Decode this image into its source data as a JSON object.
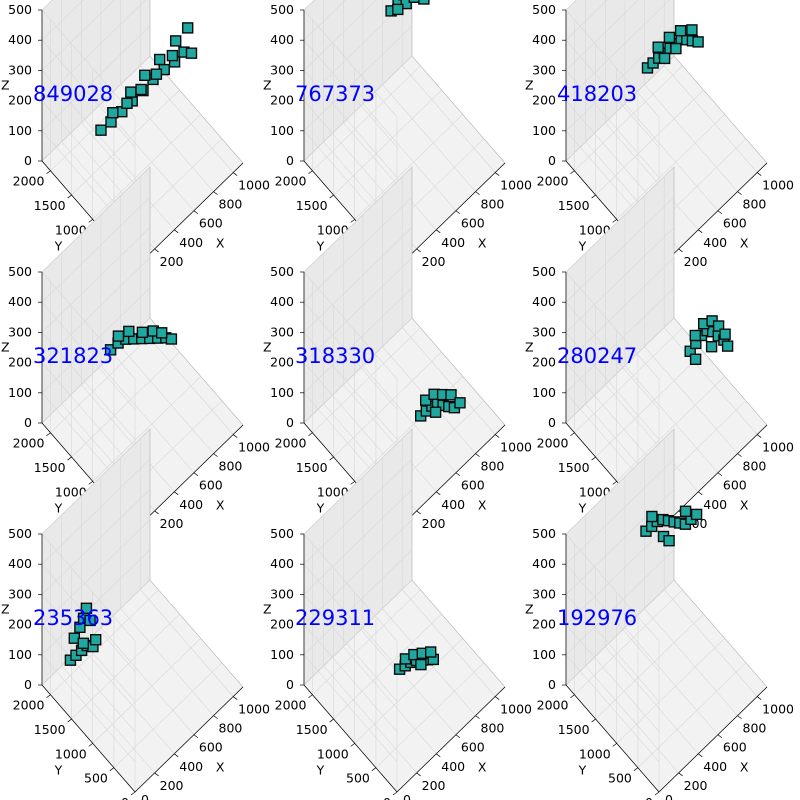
{
  "figure": {
    "colors": {
      "pane_side": "#e9e9e9",
      "pane_floor": "#f2f2f2",
      "grid": "#d8d8d8",
      "edge": "#b0b0b0",
      "label": "#0000ff",
      "voxel_fill": "#1fa8a0",
      "voxel_edge": "#0a0a0a"
    }
  },
  "chart_data": [
    {
      "type": "scatter",
      "label": "849028",
      "xlabel": "X",
      "ylabel": "Y",
      "zlabel": "Z",
      "xlim": [
        0,
        1100
      ],
      "ylim": [
        0,
        2200
      ],
      "zlim": [
        0,
        500
      ],
      "xticks": [
        "200",
        "400",
        "600",
        "800",
        "1000"
      ],
      "yticks": [
        "0",
        "500",
        "1000",
        "1500",
        "2000"
      ],
      "zticks": [
        "0",
        "100",
        "200",
        "300",
        "400",
        "500"
      ],
      "x_origin_label": "0",
      "points": [
        [
          300,
          1500,
          120
        ],
        [
          380,
          1450,
          130
        ],
        [
          460,
          1380,
          150
        ],
        [
          540,
          1320,
          170
        ],
        [
          620,
          1250,
          190
        ],
        [
          700,
          1200,
          210
        ],
        [
          780,
          1120,
          230
        ],
        [
          860,
          1060,
          240
        ],
        [
          930,
          1000,
          260
        ],
        [
          980,
          940,
          250
        ],
        [
          420,
          1500,
          140
        ],
        [
          560,
          1400,
          180
        ],
        [
          660,
          1300,
          220
        ],
        [
          760,
          1180,
          260
        ],
        [
          880,
          1080,
          300
        ],
        [
          950,
          960,
          340
        ],
        [
          820,
          1020,
          280
        ],
        [
          700,
          1120,
          240
        ],
        [
          600,
          1250,
          200
        ],
        [
          500,
          1350,
          170
        ]
      ]
    },
    {
      "type": "scatter",
      "label": "767373",
      "xlabel": "X",
      "ylabel": "Y",
      "zlabel": "Z",
      "xlim": [
        0,
        1100
      ],
      "ylim": [
        0,
        2200
      ],
      "zlim": [
        0,
        500
      ],
      "xticks": [
        "200",
        "400",
        "600",
        "800",
        "1000"
      ],
      "yticks": [
        "0",
        "500",
        "1000",
        "1500",
        "2000"
      ],
      "zticks": [
        "0",
        "100",
        "200",
        "300",
        "400",
        "500"
      ],
      "x_origin_label": "0",
      "points": [
        [
          650,
          1650,
          380
        ],
        [
          700,
          1600,
          400
        ],
        [
          740,
          1560,
          420
        ],
        [
          780,
          1520,
          430
        ],
        [
          820,
          1480,
          440
        ],
        [
          860,
          1440,
          430
        ],
        [
          900,
          1400,
          420
        ],
        [
          760,
          1620,
          460
        ],
        [
          700,
          1680,
          450
        ],
        [
          820,
          1560,
          470
        ],
        [
          880,
          1500,
          460
        ],
        [
          920,
          1460,
          440
        ],
        [
          960,
          1420,
          420
        ],
        [
          740,
          1500,
          400
        ],
        [
          800,
          1450,
          410
        ],
        [
          680,
          1560,
          390
        ],
        [
          860,
          1360,
          400
        ],
        [
          940,
          1380,
          410
        ]
      ]
    },
    {
      "type": "scatter",
      "label": "418203",
      "xlabel": "X",
      "ylabel": "Y",
      "zlabel": "Z",
      "xlim": [
        0,
        1100
      ],
      "ylim": [
        0,
        2200
      ],
      "zlim": [
        0,
        500
      ],
      "xticks": [
        "200",
        "400",
        "600",
        "800",
        "1000"
      ],
      "yticks": [
        "0",
        "500",
        "1000",
        "1500",
        "2000"
      ],
      "zticks": [
        "0",
        "100",
        "200",
        "300",
        "400",
        "500"
      ],
      "x_origin_label": "0",
      "points": [
        [
          520,
          1480,
          260
        ],
        [
          560,
          1440,
          270
        ],
        [
          600,
          1400,
          280
        ],
        [
          640,
          1360,
          290
        ],
        [
          680,
          1320,
          300
        ],
        [
          720,
          1280,
          310
        ],
        [
          760,
          1240,
          320
        ],
        [
          800,
          1200,
          310
        ],
        [
          840,
          1160,
          300
        ],
        [
          880,
          1120,
          290
        ],
        [
          620,
          1460,
          300
        ],
        [
          700,
          1380,
          320
        ],
        [
          780,
          1300,
          330
        ],
        [
          860,
          1220,
          320
        ],
        [
          740,
          1320,
          280
        ],
        [
          660,
          1400,
          260
        ]
      ]
    },
    {
      "type": "scatter",
      "label": "321823",
      "xlabel": "X",
      "ylabel": "Y",
      "zlabel": "Z",
      "xlim": [
        0,
        1100
      ],
      "ylim": [
        0,
        2200
      ],
      "zlim": [
        0,
        500
      ],
      "xticks": [
        "200",
        "400",
        "600",
        "800",
        "1000"
      ],
      "yticks": [
        "0",
        "500",
        "1000",
        "1500",
        "2000"
      ],
      "zticks": [
        "0",
        "100",
        "200",
        "300",
        "400",
        "500"
      ],
      "x_origin_label": "0",
      "points": [
        [
          440,
          1600,
          200
        ],
        [
          500,
          1560,
          210
        ],
        [
          560,
          1520,
          210
        ],
        [
          620,
          1470,
          200
        ],
        [
          680,
          1420,
          190
        ],
        [
          740,
          1370,
          180
        ],
        [
          800,
          1320,
          170
        ],
        [
          860,
          1270,
          160
        ],
        [
          900,
          1230,
          150
        ],
        [
          520,
          1600,
          220
        ],
        [
          600,
          1540,
          220
        ],
        [
          700,
          1450,
          200
        ],
        [
          780,
          1380,
          190
        ],
        [
          840,
          1320,
          175
        ]
      ]
    },
    {
      "type": "scatter",
      "label": "318330",
      "xlabel": "X",
      "ylabel": "Y",
      "zlabel": "Z",
      "xlim": [
        0,
        1100
      ],
      "ylim": [
        0,
        2200
      ],
      "zlim": [
        0,
        500
      ],
      "xticks": [
        "200",
        "400",
        "600",
        "800",
        "1000"
      ],
      "yticks": [
        "0",
        "500",
        "1000",
        "1500",
        "2000"
      ],
      "zticks": [
        "0",
        "100",
        "200",
        "300",
        "400",
        "500"
      ],
      "x_origin_label": "0",
      "points": [
        [
          620,
          880,
          40
        ],
        [
          660,
          840,
          50
        ],
        [
          700,
          800,
          60
        ],
        [
          740,
          760,
          60
        ],
        [
          780,
          720,
          50
        ],
        [
          820,
          680,
          40
        ],
        [
          860,
          640,
          30
        ],
        [
          680,
          900,
          70
        ],
        [
          740,
          840,
          80
        ],
        [
          800,
          780,
          70
        ],
        [
          860,
          720,
          60
        ],
        [
          720,
          760,
          40
        ],
        [
          900,
          600,
          40
        ]
      ]
    },
    {
      "type": "scatter",
      "label": "280247",
      "xlabel": "X",
      "ylabel": "Y",
      "zlabel": "Z",
      "xlim": [
        0,
        1100
      ],
      "ylim": [
        0,
        2200
      ],
      "zlim": [
        0,
        500
      ],
      "xticks": [
        "200",
        "400",
        "600",
        "800",
        "1000"
      ],
      "yticks": [
        "0",
        "500",
        "1000",
        "1500",
        "2000"
      ],
      "zticks": [
        "0",
        "100",
        "200",
        "300",
        "400",
        "500"
      ],
      "x_origin_label": "0",
      "points": [
        [
          740,
          980,
          200
        ],
        [
          780,
          940,
          220
        ],
        [
          820,
          900,
          240
        ],
        [
          860,
          860,
          250
        ],
        [
          900,
          820,
          240
        ],
        [
          940,
          780,
          220
        ],
        [
          980,
          740,
          200
        ],
        [
          1000,
          700,
          180
        ],
        [
          800,
          1000,
          230
        ],
        [
          860,
          940,
          260
        ],
        [
          920,
          880,
          260
        ],
        [
          960,
          820,
          240
        ],
        [
          1000,
          760,
          210
        ],
        [
          760,
          900,
          180
        ],
        [
          880,
          800,
          200
        ]
      ]
    },
    {
      "type": "scatter",
      "label": "235363",
      "xlabel": "X",
      "ylabel": "Y",
      "zlabel": "Z",
      "xlim": [
        0,
        1100
      ],
      "ylim": [
        0,
        2200
      ],
      "zlim": [
        0,
        500
      ],
      "xticks": [
        "200",
        "400",
        "600",
        "800",
        "1000"
      ],
      "yticks": [
        "0",
        "500",
        "1000",
        "1500",
        "2000"
      ],
      "zticks": [
        "0",
        "100",
        "200",
        "300",
        "400",
        "500"
      ],
      "x_origin_label": "0",
      "points": [
        [
          160,
          1900,
          80
        ],
        [
          200,
          1860,
          90
        ],
        [
          240,
          1820,
          100
        ],
        [
          280,
          1780,
          110
        ],
        [
          320,
          1740,
          100
        ],
        [
          200,
          1900,
          140
        ],
        [
          240,
          1860,
          170
        ],
        [
          260,
          1820,
          200
        ],
        [
          280,
          1800,
          230
        ],
        [
          300,
          1760,
          190
        ],
        [
          340,
          1720,
          120
        ],
        [
          240,
          1780,
          130
        ]
      ]
    },
    {
      "type": "scatter",
      "label": "229311",
      "xlabel": "X",
      "ylabel": "Y",
      "zlabel": "Z",
      "xlim": [
        0,
        1100
      ],
      "ylim": [
        0,
        2200
      ],
      "zlim": [
        0,
        500
      ],
      "xticks": [
        "200",
        "400",
        "600",
        "800",
        "1000"
      ],
      "yticks": [
        "0",
        "500",
        "1000",
        "1500",
        "2000"
      ],
      "zticks": [
        "0",
        "100",
        "200",
        "300",
        "400",
        "500"
      ],
      "x_origin_label": "0",
      "points": [
        [
          560,
          1240,
          30
        ],
        [
          600,
          1200,
          35
        ],
        [
          640,
          1160,
          40
        ],
        [
          680,
          1120,
          40
        ],
        [
          720,
          1080,
          35
        ],
        [
          760,
          1040,
          30
        ],
        [
          800,
          1000,
          25
        ],
        [
          620,
          1240,
          45
        ],
        [
          680,
          1180,
          50
        ],
        [
          740,
          1120,
          45
        ],
        [
          800,
          1060,
          40
        ],
        [
          700,
          1060,
          30
        ]
      ]
    },
    {
      "type": "scatter",
      "label": "192976",
      "xlabel": "X",
      "ylabel": "Y",
      "zlabel": "Z",
      "xlim": [
        0,
        1100
      ],
      "ylim": [
        0,
        2200
      ],
      "zlim": [
        0,
        500
      ],
      "xticks": [
        "200",
        "400",
        "600",
        "800",
        "1000"
      ],
      "yticks": [
        "0",
        "500",
        "1000",
        "1500",
        "2000"
      ],
      "zticks": [
        "0",
        "100",
        "200",
        "300",
        "400",
        "500"
      ],
      "x_origin_label": "0",
      "points": [
        [
          600,
          1700,
          400
        ],
        [
          640,
          1660,
          410
        ],
        [
          680,
          1620,
          420
        ],
        [
          720,
          1580,
          420
        ],
        [
          760,
          1540,
          410
        ],
        [
          800,
          1500,
          400
        ],
        [
          840,
          1460,
          390
        ],
        [
          880,
          1420,
          380
        ],
        [
          920,
          1380,
          390
        ],
        [
          960,
          1340,
          400
        ],
        [
          700,
          1520,
          380
        ],
        [
          740,
          1480,
          360
        ],
        [
          660,
          1700,
          430
        ],
        [
          900,
          1460,
          410
        ]
      ]
    }
  ]
}
